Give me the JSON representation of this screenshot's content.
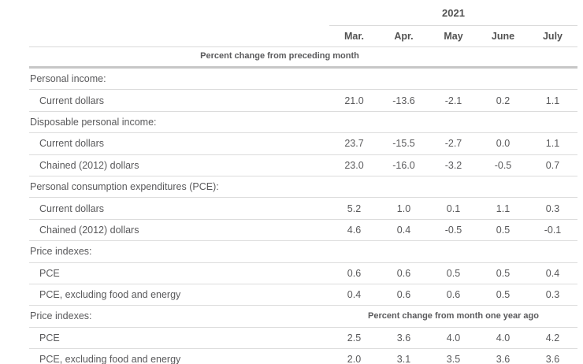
{
  "table": {
    "year_header": "2021",
    "columns": [
      "Mar.",
      "Apr.",
      "May",
      "June",
      "July"
    ],
    "unit_note": "Percent change from preceding month",
    "rows": [
      {
        "type": "section",
        "label": "Personal income:"
      },
      {
        "type": "data",
        "label": "Current dollars",
        "values": [
          "21.0",
          "-13.6",
          "-2.1",
          "0.2",
          "1.1"
        ]
      },
      {
        "type": "section",
        "label": "Disposable personal income:"
      },
      {
        "type": "data",
        "label": "Current dollars",
        "values": [
          "23.7",
          "-15.5",
          "-2.7",
          "0.0",
          "1.1"
        ]
      },
      {
        "type": "data",
        "label": "Chained (2012) dollars",
        "values": [
          "23.0",
          "-16.0",
          "-3.2",
          "-0.5",
          "0.7"
        ]
      },
      {
        "type": "section",
        "label": "Personal consumption expenditures (PCE):"
      },
      {
        "type": "data",
        "label": "Current dollars",
        "values": [
          "5.2",
          "1.0",
          "0.1",
          "1.1",
          "0.3"
        ]
      },
      {
        "type": "data",
        "label": "Chained (2012) dollars",
        "values": [
          "4.6",
          "0.4",
          "-0.5",
          "0.5",
          "-0.1"
        ]
      },
      {
        "type": "section",
        "label": "Price indexes:"
      },
      {
        "type": "data",
        "label": "PCE",
        "values": [
          "0.6",
          "0.6",
          "0.5",
          "0.5",
          "0.4"
        ]
      },
      {
        "type": "data",
        "label": "PCE, excluding food and energy",
        "values": [
          "0.4",
          "0.6",
          "0.6",
          "0.5",
          "0.3"
        ]
      },
      {
        "type": "section",
        "label": "Price indexes:",
        "note": "Percent change from month one year ago"
      },
      {
        "type": "data",
        "label": "PCE",
        "values": [
          "2.5",
          "3.6",
          "4.0",
          "4.0",
          "4.2"
        ]
      },
      {
        "type": "data",
        "label": "PCE, excluding food and energy",
        "values": [
          "2.0",
          "3.1",
          "3.5",
          "3.6",
          "3.6"
        ]
      }
    ]
  }
}
